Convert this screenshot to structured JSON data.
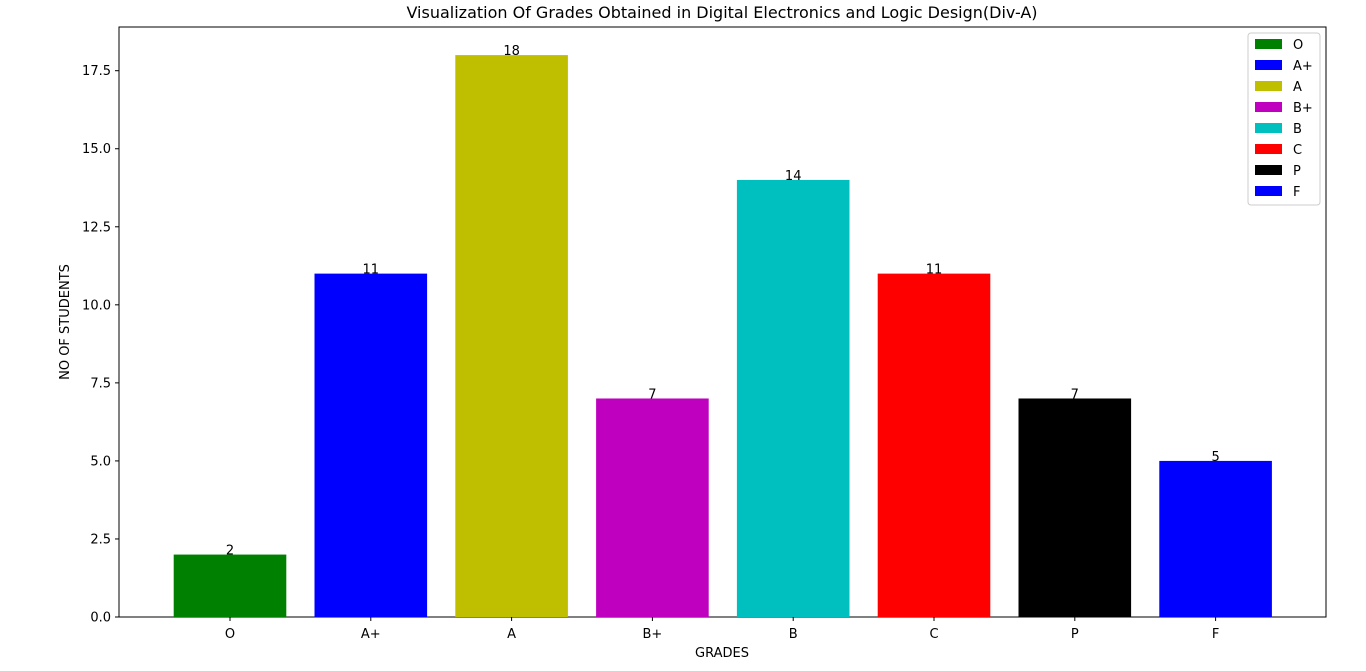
{
  "chart_data": {
    "type": "bar",
    "title": "Visualization Of Grades Obtained in Digital Electronics and Logic Design(Div-A)",
    "xlabel": "GRADES",
    "ylabel": "NO OF STUDENTS",
    "categories": [
      "O",
      "A+",
      "A",
      "B+",
      "B",
      "C",
      "P",
      "F"
    ],
    "values": [
      2,
      11,
      18,
      7,
      14,
      11,
      7,
      5
    ],
    "colors": [
      "#008000",
      "#0000ff",
      "#bfbf00",
      "#bf00bf",
      "#00bfbf",
      "#ff0000",
      "#000000",
      "#0000ff"
    ],
    "value_labels": [
      "2",
      "11",
      "18",
      "7",
      "14",
      "11",
      "7",
      "5"
    ],
    "ylim": [
      0,
      18.9
    ],
    "yticks": [
      0,
      2.5,
      5,
      7.5,
      10,
      12.5,
      15,
      17.5
    ],
    "ytick_labels": [
      "0.0",
      "2.5",
      "5.0",
      "7.5",
      "10.0",
      "12.5",
      "15.0",
      "17.5"
    ],
    "grid": false,
    "legend": {
      "placement": "top-right",
      "entries": [
        "O",
        "A+",
        "A",
        "B+",
        "B",
        "C",
        "P",
        "F"
      ]
    }
  }
}
